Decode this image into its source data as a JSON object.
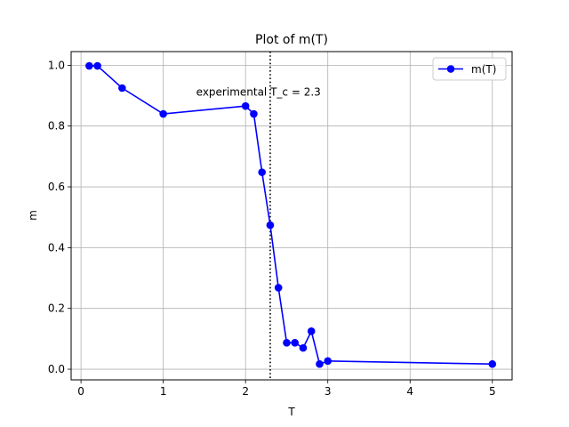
{
  "chart_data": {
    "type": "line",
    "title": "Plot of m(T)",
    "xlabel": "T",
    "ylabel": "m",
    "xlim": [
      -0.12,
      5.24
    ],
    "ylim": [
      -0.035,
      1.045
    ],
    "xticks": [
      0,
      1,
      2,
      3,
      4,
      5
    ],
    "xtick_labels": [
      "0",
      "1",
      "2",
      "3",
      "4",
      "5"
    ],
    "yticks": [
      0.0,
      0.2,
      0.4,
      0.6,
      0.8,
      1.0
    ],
    "ytick_labels": [
      "0.0",
      "0.2",
      "0.4",
      "0.6",
      "0.8",
      "1.0"
    ],
    "grid": true,
    "legend_position": "upper right",
    "series": [
      {
        "name": "m(T)",
        "color": "#0000ff",
        "marker": "circle",
        "x": [
          0.1,
          0.2,
          0.5,
          1.0,
          2.0,
          2.1,
          2.2,
          2.3,
          2.4,
          2.5,
          2.6,
          2.7,
          2.8,
          2.9,
          3.0,
          5.0
        ],
        "y": [
          0.998,
          0.998,
          0.925,
          0.84,
          0.866,
          0.84,
          0.648,
          0.474,
          0.268,
          0.087,
          0.087,
          0.07,
          0.125,
          0.017,
          0.027,
          0.017
        ]
      }
    ],
    "vline": {
      "x": 2.3,
      "style": "dotted",
      "color": "#000000"
    },
    "annotation": {
      "text": "experimental T_c = 2.3",
      "x": 1.4,
      "y": 0.9
    }
  }
}
